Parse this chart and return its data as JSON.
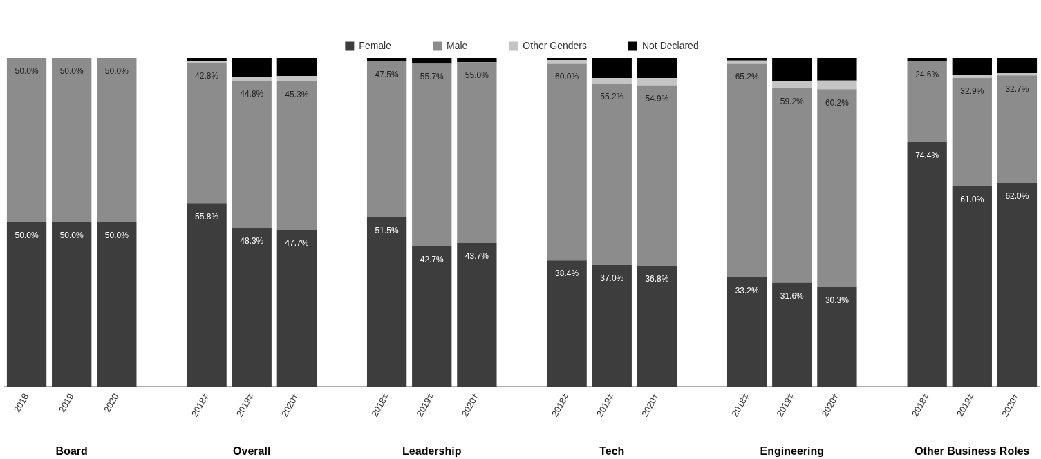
{
  "chart_data": {
    "type": "bar",
    "stacked": true,
    "legend": "top",
    "grid": false,
    "tick_labels": "x",
    "ylim": [
      0,
      100
    ],
    "categories": [
      "2018",
      "2019",
      "2020",
      null,
      "2018‡",
      "2019‡",
      "2020†",
      null,
      "2018‡",
      "2019‡",
      "2020†",
      null,
      "2018‡",
      "2019‡",
      "2020†",
      null,
      "2018‡",
      "2019‡",
      "2020†",
      null,
      "2018‡",
      "2019‡",
      "2020†"
    ],
    "series": [
      {
        "name": "Female",
        "color": "#3d3d3d",
        "values": [
          50.0,
          50.0,
          50.0,
          null,
          55.8,
          48.3,
          47.7,
          null,
          51.5,
          42.7,
          43.7,
          null,
          38.4,
          37.0,
          36.8,
          null,
          33.2,
          31.6,
          30.3,
          null,
          74.4,
          61.0,
          62.0
        ],
        "value_labels": [
          "50.0%",
          "50.0%",
          "50.0%",
          null,
          "55.8%",
          "48.3%",
          "47.7%",
          null,
          "51.5%",
          "42.7%",
          "43.7%",
          null,
          "38.4%",
          "37.0%",
          "36.8%",
          null,
          "33.2%",
          "31.6%",
          "30.3%",
          null,
          "74.4%",
          "61.0%",
          "62.0%"
        ]
      },
      {
        "name": "Male",
        "color": "#8c8c8c",
        "values": [
          50.0,
          50.0,
          50.0,
          null,
          42.8,
          44.8,
          45.3,
          null,
          47.5,
          55.7,
          55.0,
          null,
          60.0,
          55.2,
          54.9,
          null,
          65.2,
          59.2,
          60.2,
          null,
          24.6,
          32.9,
          32.7
        ],
        "value_labels": [
          "50.0%",
          "50.0%",
          "50.0%",
          null,
          "42.8%",
          "44.8%",
          "45.3%",
          null,
          "47.5%",
          "55.7%",
          "55.0%",
          null,
          "60.0%",
          "55.2%",
          "54.9%",
          null,
          "65.2%",
          "59.2%",
          "60.2%",
          null,
          "24.6%",
          "32.9%",
          "32.7%"
        ]
      },
      {
        "name": "Other Genders",
        "color": "#c4c4c4",
        "values": [
          0,
          0,
          0,
          null,
          0.4,
          1.2,
          1.5,
          null,
          0,
          0,
          0,
          null,
          0.9,
          1.7,
          2.2,
          null,
          0.8,
          2.1,
          2.6,
          null,
          0,
          0.9,
          0.7
        ]
      },
      {
        "name": "Not Declared",
        "color": "#000000",
        "values": [
          0,
          0,
          0,
          null,
          1.0,
          5.7,
          5.5,
          null,
          1.0,
          1.6,
          1.3,
          null,
          0.7,
          6.1,
          6.1,
          null,
          0.8,
          7.1,
          6.9,
          null,
          1.0,
          5.2,
          4.6
        ]
      }
    ],
    "annotations": [
      "Board",
      "Overall",
      "Leadership",
      "Tech",
      "Engineering",
      "Other Business Roles"
    ]
  }
}
